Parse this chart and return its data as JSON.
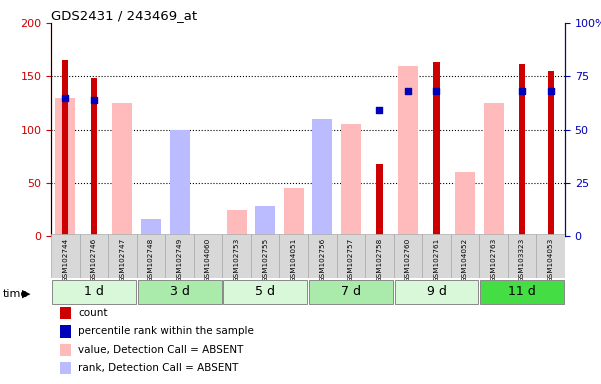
{
  "title": "GDS2431 / 243469_at",
  "samples": [
    "GSM102744",
    "GSM102746",
    "GSM102747",
    "GSM102748",
    "GSM102749",
    "GSM104060",
    "GSM102753",
    "GSM102755",
    "GSM104051",
    "GSM102756",
    "GSM102757",
    "GSM102758",
    "GSM102760",
    "GSM102761",
    "GSM104052",
    "GSM102763",
    "GSM103323",
    "GSM104053"
  ],
  "time_groups": [
    {
      "label": "1 d",
      "start": 0,
      "end": 3,
      "color": "#d9f7d9"
    },
    {
      "label": "3 d",
      "start": 3,
      "end": 6,
      "color": "#aaeaaa"
    },
    {
      "label": "5 d",
      "start": 6,
      "end": 9,
      "color": "#d9f7d9"
    },
    {
      "label": "7 d",
      "start": 9,
      "end": 12,
      "color": "#aaeaaa"
    },
    {
      "label": "9 d",
      "start": 12,
      "end": 15,
      "color": "#d9f7d9"
    },
    {
      "label": "11 d",
      "start": 15,
      "end": 18,
      "color": "#44dd44"
    }
  ],
  "count_values": [
    165,
    148,
    0,
    0,
    0,
    0,
    0,
    0,
    0,
    0,
    0,
    68,
    0,
    163,
    0,
    0,
    162,
    155
  ],
  "percentile_values": [
    65,
    64,
    0,
    0,
    0,
    0,
    0,
    0,
    0,
    0,
    0,
    59,
    68,
    68,
    0,
    0,
    68,
    68
  ],
  "absent_value_bars": [
    130,
    0,
    125,
    0,
    100,
    0,
    25,
    13,
    45,
    110,
    105,
    0,
    160,
    0,
    60,
    125,
    0,
    0
  ],
  "absent_rank_bars_pct": [
    0,
    0,
    0,
    8,
    50,
    0,
    0,
    14,
    0,
    55,
    0,
    0,
    0,
    0,
    0,
    0,
    0,
    0
  ],
  "ylim": [
    0,
    200
  ],
  "y2lim": [
    0,
    100
  ],
  "yticks_left": [
    0,
    50,
    100,
    150,
    200
  ],
  "yticks_right": [
    0,
    25,
    50,
    75,
    100
  ],
  "color_count": "#cc0000",
  "color_percentile": "#0000bb",
  "color_absent_value": "#ffbbbb",
  "color_absent_rank": "#bbbbff",
  "legend_items": [
    {
      "label": "count",
      "color": "#cc0000"
    },
    {
      "label": "percentile rank within the sample",
      "color": "#0000bb"
    },
    {
      "label": "value, Detection Call = ABSENT",
      "color": "#ffbbbb"
    },
    {
      "label": "rank, Detection Call = ABSENT",
      "color": "#bbbbff"
    }
  ]
}
